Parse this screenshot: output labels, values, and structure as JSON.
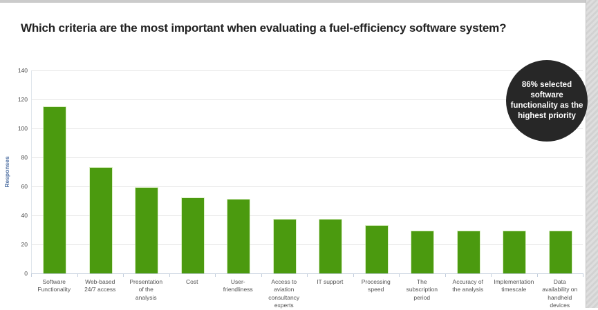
{
  "chart_data": {
    "type": "bar",
    "title": "Which criteria are the most important when evaluating a fuel-efficiency software system?",
    "xlabel": "",
    "ylabel": "Responses",
    "ylim": [
      0,
      140
    ],
    "yticks": [
      0,
      20,
      40,
      60,
      80,
      100,
      120,
      140
    ],
    "grid": true,
    "legend": "none",
    "bar_color": "#4b9a0f",
    "categories": [
      "Software Functionality",
      "Web-based 24/7 access",
      "Presentation of the analysis",
      "Cost",
      "User-friendliness",
      "Access to aviation consultancy experts",
      "IT support",
      "Processing speed",
      "The subscription period",
      "Accuracy of the analysis",
      "Implementation timescale",
      "Data availability on handheld devices"
    ],
    "tick_label_lines": [
      [
        "Software",
        "Functionality"
      ],
      [
        "Web-based",
        "24/7 access"
      ],
      [
        "Presentation",
        "of the",
        "analysis"
      ],
      [
        "Cost"
      ],
      [
        "User-",
        "friendliness"
      ],
      [
        "Access to",
        "aviation",
        "consultancy",
        "experts"
      ],
      [
        "IT support"
      ],
      [
        "Processing",
        "speed"
      ],
      [
        "The",
        "subscription",
        "period"
      ],
      [
        "Accuracy of",
        "the analysis"
      ],
      [
        "Implementation",
        "timescale"
      ],
      [
        "Data",
        "availability on",
        "handheld",
        "devices"
      ]
    ],
    "values": [
      115,
      73,
      59,
      52,
      51,
      37,
      37,
      33,
      29,
      29,
      29,
      29
    ]
  },
  "annotation_badge": {
    "text": "86% selected software functionality as the highest priority",
    "lines": [
      "86% selected",
      "software",
      "functionality as the",
      "highest priority"
    ],
    "bg_color": "#272727",
    "text_color": "#ffffff"
  }
}
